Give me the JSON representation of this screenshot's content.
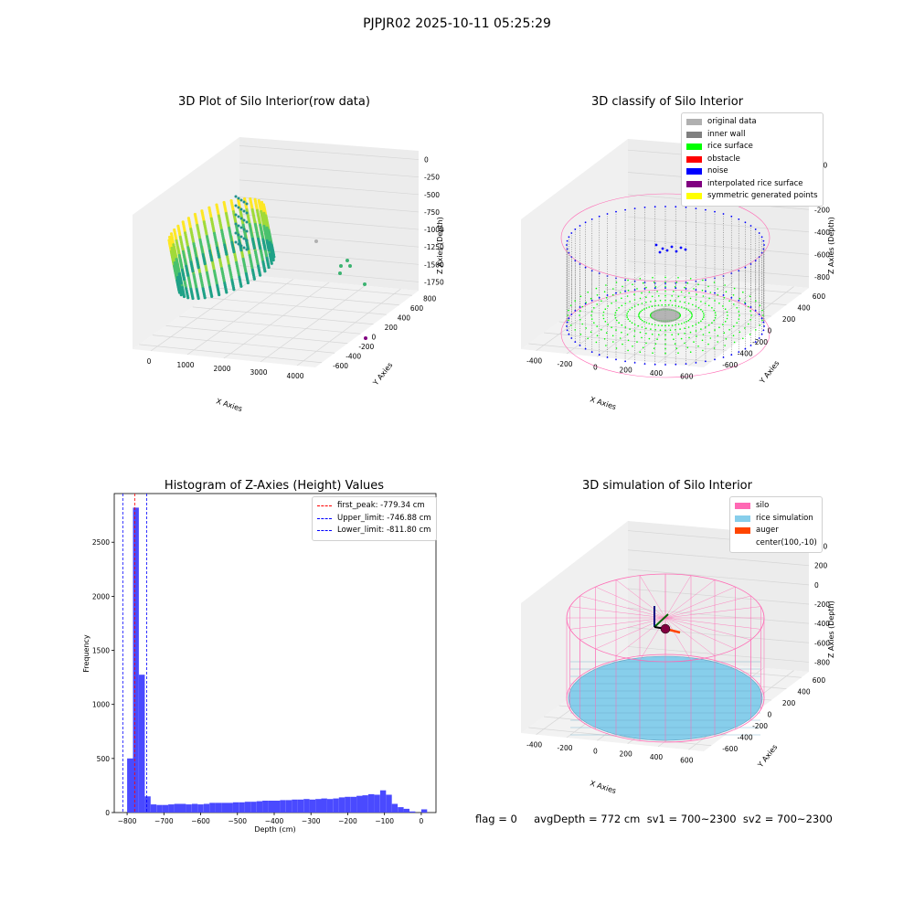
{
  "suptitle": "PJPJR02 2025-10-11 05:25:29",
  "colors": {
    "rice_surface": "#00ff00",
    "noise": "#0000ff",
    "wall": "#808080",
    "silo_pink": "#ff69b4",
    "rice_sim": "#87ceeb",
    "auger": "#ff4500",
    "hist_bar": "#4a4aff"
  },
  "footer": "flag = 0     avgDepth = 772 cm  sv1 = 700~2300  sv2 = 700~2300",
  "chart_data": [
    {
      "type": "scatter",
      "title": "3D Plot of Silo Interior(row data)",
      "xlabel": "X Axies",
      "ylabel": "Y Axies",
      "zlabel": "Z Axies (Depth)",
      "x_ticks": [
        "0",
        "1000",
        "2000",
        "3000",
        "4000"
      ],
      "y_ticks": [
        "-600",
        "-400",
        "-200",
        "0",
        "200",
        "400",
        "600",
        "800"
      ],
      "z_ticks": [
        "0",
        "-250",
        "-500",
        "-750",
        "-1000",
        "-1250",
        "-1500",
        "-1750"
      ],
      "colormap": "viridis"
    },
    {
      "type": "scatter",
      "title": "3D classify of Silo Interior",
      "xlabel": "X Axies",
      "ylabel": "Y Axies",
      "zlabel": "Z Axies (Depth)",
      "x_ticks": [
        "-400",
        "-200",
        "0",
        "200",
        "400",
        "600"
      ],
      "y_ticks": [
        "-600",
        "-400",
        "-200",
        "0",
        "200",
        "400",
        "600"
      ],
      "z_ticks": [
        "200",
        "0",
        "-200",
        "-400",
        "-600",
        "-800"
      ],
      "legend": [
        {
          "label": "original data",
          "color": "#b0b0b0"
        },
        {
          "label": "inner wall",
          "color": "#808080"
        },
        {
          "label": "rice surface",
          "color": "#00ff00"
        },
        {
          "label": "obstacle",
          "color": "#ff0000"
        },
        {
          "label": "noise",
          "color": "#0000ff"
        },
        {
          "label": "interpolated rice surface",
          "color": "#800080"
        },
        {
          "label": "symmetric generated points",
          "color": "#ffff00"
        }
      ]
    },
    {
      "type": "bar",
      "title": "Histogram of Z-Axies (Height) Values",
      "xlabel": "Depth (cm)",
      "ylabel": "Frequency",
      "xlim": [
        -835,
        40
      ],
      "ylim": [
        0,
        2950
      ],
      "x_ticks": [
        -800,
        -700,
        -600,
        -500,
        -400,
        -300,
        -200,
        -100,
        0
      ],
      "y_ticks": [
        0,
        500,
        1000,
        1500,
        2000,
        2500
      ],
      "bin_width": 16,
      "bin_starts": [
        -800,
        -784,
        -768,
        -752,
        -736,
        -720,
        -704,
        -688,
        -672,
        -656,
        -640,
        -624,
        -608,
        -592,
        -576,
        -560,
        -544,
        -528,
        -512,
        -496,
        -480,
        -464,
        -448,
        -432,
        -416,
        -400,
        -384,
        -368,
        -352,
        -336,
        -320,
        -304,
        -288,
        -272,
        -256,
        -240,
        -224,
        -208,
        -192,
        -176,
        -160,
        -144,
        -128,
        -112,
        -96,
        -80,
        -64,
        -48,
        -32,
        -16,
        0
      ],
      "values": [
        500,
        2820,
        1275,
        150,
        75,
        70,
        70,
        75,
        80,
        80,
        75,
        80,
        75,
        80,
        90,
        90,
        90,
        90,
        95,
        95,
        100,
        100,
        105,
        110,
        110,
        110,
        115,
        115,
        120,
        120,
        125,
        120,
        125,
        130,
        125,
        130,
        140,
        145,
        145,
        155,
        160,
        170,
        165,
        205,
        165,
        80,
        50,
        35,
        10,
        0,
        30
      ],
      "vlines": [
        {
          "label": "first_peak: -779.34 cm",
          "x": -779.34,
          "color": "#ff0000"
        },
        {
          "label": "Upper_limit: -746.88 cm",
          "x": -746.88,
          "color": "#0000ff"
        },
        {
          "label": "Lower_limit: -811.80 cm",
          "x": -811.8,
          "color": "#0000ff"
        }
      ]
    },
    {
      "type": "scatter",
      "title": "3D simulation of Silo Interior",
      "xlabel": "X Axies",
      "ylabel": "Y Axies",
      "zlabel": "Z Axies (Depth)",
      "x_ticks": [
        "-400",
        "-200",
        "0",
        "200",
        "400",
        "600"
      ],
      "y_ticks": [
        "-600",
        "-400",
        "-200",
        "0",
        "200",
        "400",
        "600"
      ],
      "z_ticks": [
        "400",
        "200",
        "0",
        "-200",
        "-400",
        "-600",
        "-800"
      ],
      "legend": [
        {
          "label": "silo",
          "color": "#ff69b4"
        },
        {
          "label": "rice simulation",
          "color": "#87ceeb"
        },
        {
          "label": "auger",
          "color": "#ff4500"
        },
        {
          "label": "center(100,-10)",
          "color": "#ffffff"
        }
      ]
    }
  ]
}
